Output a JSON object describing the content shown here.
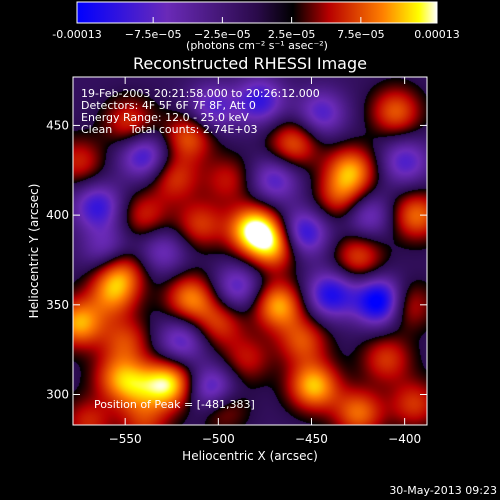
{
  "chart_data": {
    "type": "heatmap",
    "title": "Reconstructed RHESSI Image",
    "xlabel": "Heliocentric X (arcsec)",
    "ylabel": "Heliocentric Y (arcsec)",
    "xlim": [
      -578,
      -388
    ],
    "ylim": [
      283,
      477
    ],
    "x_ticks": [
      -550,
      -500,
      -450,
      -400
    ],
    "y_ticks": [
      300,
      350,
      400,
      450
    ],
    "x_tick_labels": [
      "−550",
      "−500",
      "−450",
      "−400"
    ],
    "y_tick_labels": [
      "300",
      "350",
      "400",
      "450"
    ],
    "colorbar": {
      "range": [
        -0.00013,
        0.00013
      ],
      "tick_labels": [
        "-0.00013",
        "−7.5e−05",
        "−2.5e−05",
        "2.5e−05",
        "7.5e−05",
        "0.00013"
      ],
      "tick_values": [
        -0.00013,
        -7.5e-05,
        -2.5e-05,
        2.5e-05,
        7.5e-05,
        0.00013
      ],
      "unit_label": "(photons cm⁻² s⁻¹ asec⁻²)"
    },
    "annotations": [
      "19-Feb-2003 20:21:58.000 to 20:26:12.000",
      "Detectors: 4F 5F 6F 7F 8F, Att 0",
      "Energy Range: 12.0 - 25.0 keV",
      "Clean     Total counts: 2.74E+03"
    ],
    "peak_label": "Position of Peak = [-481,383]",
    "peak": [
      -481,
      383
    ],
    "blobs": [
      {
        "x": -481,
        "y": 392,
        "v": 1.0
      },
      {
        "x": -470,
        "y": 383,
        "v": 0.7
      },
      {
        "x": -527,
        "y": 306,
        "v": 0.9
      },
      {
        "x": -545,
        "y": 305,
        "v": 0.5
      },
      {
        "x": -449,
        "y": 305,
        "v": 0.8
      },
      {
        "x": -499,
        "y": 295,
        "v": 0.55
      },
      {
        "x": -468,
        "y": 350,
        "v": 0.75
      },
      {
        "x": -575,
        "y": 340,
        "v": 0.75
      },
      {
        "x": -557,
        "y": 356,
        "v": 0.55
      },
      {
        "x": -553,
        "y": 369,
        "v": 0.6
      },
      {
        "x": -515,
        "y": 354,
        "v": 0.65
      },
      {
        "x": -500,
        "y": 340,
        "v": 0.45
      },
      {
        "x": -548,
        "y": 452,
        "v": 0.45
      },
      {
        "x": -524,
        "y": 421,
        "v": 0.45
      },
      {
        "x": -516,
        "y": 444,
        "v": 0.55
      },
      {
        "x": -540,
        "y": 400,
        "v": 0.4
      },
      {
        "x": -460,
        "y": 440,
        "v": 0.55
      },
      {
        "x": -429,
        "y": 425,
        "v": 0.7
      },
      {
        "x": -405,
        "y": 458,
        "v": 0.55
      },
      {
        "x": -394,
        "y": 400,
        "v": 0.6
      },
      {
        "x": -425,
        "y": 377,
        "v": 0.5
      },
      {
        "x": -400,
        "y": 350,
        "v": 0.5
      },
      {
        "x": -410,
        "y": 320,
        "v": 0.45
      },
      {
        "x": -425,
        "y": 290,
        "v": 0.6
      },
      {
        "x": -395,
        "y": 295,
        "v": 0.45
      },
      {
        "x": -455,
        "y": 330,
        "v": 0.5
      },
      {
        "x": -555,
        "y": 310,
        "v": 0.45
      },
      {
        "x": -570,
        "y": 285,
        "v": 0.4
      },
      {
        "x": -540,
        "y": 285,
        "v": 0.4
      },
      {
        "x": -485,
        "y": 320,
        "v": 0.35
      },
      {
        "x": -435,
        "y": 410,
        "v": 0.45
      },
      {
        "x": -495,
        "y": 420,
        "v": 0.35
      },
      {
        "x": -575,
        "y": 430,
        "v": 0.4
      },
      {
        "x": -550,
        "y": 330,
        "v": 0.45
      },
      {
        "x": -510,
        "y": 395,
        "v": 0.45
      },
      {
        "x": -503,
        "y": 302,
        "v": -0.8
      },
      {
        "x": -455,
        "y": 390,
        "v": -0.7
      },
      {
        "x": -440,
        "y": 356,
        "v": -0.7
      },
      {
        "x": -413,
        "y": 352,
        "v": -1.0
      },
      {
        "x": -478,
        "y": 464,
        "v": -0.6
      },
      {
        "x": -540,
        "y": 433,
        "v": -0.6
      },
      {
        "x": -565,
        "y": 405,
        "v": -0.6
      },
      {
        "x": -504,
        "y": 460,
        "v": -0.5
      },
      {
        "x": -445,
        "y": 457,
        "v": -0.5
      },
      {
        "x": -520,
        "y": 330,
        "v": -0.5
      },
      {
        "x": -490,
        "y": 360,
        "v": -0.5
      },
      {
        "x": -400,
        "y": 430,
        "v": -0.5
      },
      {
        "x": -420,
        "y": 400,
        "v": -0.45
      },
      {
        "x": -470,
        "y": 420,
        "v": -0.5
      },
      {
        "x": -560,
        "y": 380,
        "v": -0.45
      },
      {
        "x": -530,
        "y": 380,
        "v": -0.4
      }
    ]
  },
  "footer": {
    "timestamp": "30-May-2013 09:23"
  },
  "colors": {
    "background": "#000000",
    "text": "#ffffff"
  }
}
